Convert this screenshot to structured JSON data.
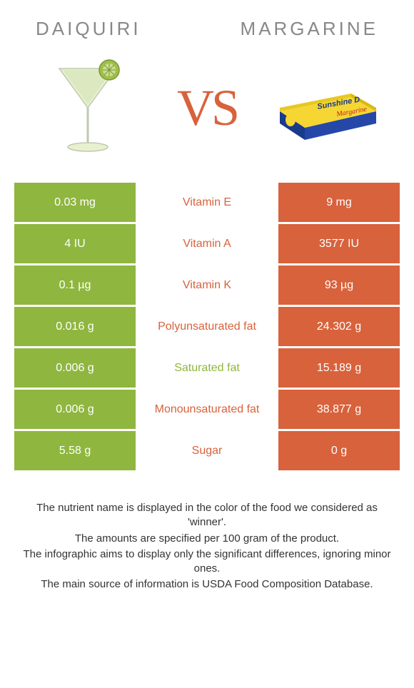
{
  "left_name": "Daiquiri",
  "right_name": "Margarine",
  "vs_text": "VS",
  "colors": {
    "left_box": "#8fb63f",
    "right_box": "#d8623c",
    "left_text": "#8fb63f",
    "right_text": "#d8623c",
    "header_text": "#888888",
    "body_text": "#333333",
    "bg": "#ffffff"
  },
  "rows": [
    {
      "label": "Vitamin E",
      "left": "0.03 mg",
      "right": "9 mg",
      "winner": "right"
    },
    {
      "label": "Vitamin A",
      "left": "4 IU",
      "right": "3577 IU",
      "winner": "right"
    },
    {
      "label": "Vitamin K",
      "left": "0.1 µg",
      "right": "93 µg",
      "winner": "right"
    },
    {
      "label": "Polyunsaturated fat",
      "left": "0.016 g",
      "right": "24.302 g",
      "winner": "right"
    },
    {
      "label": "Saturated fat",
      "left": "0.006 g",
      "right": "15.189 g",
      "winner": "left"
    },
    {
      "label": "Monounsaturated fat",
      "left": "0.006 g",
      "right": "38.877 g",
      "winner": "right"
    },
    {
      "label": "Sugar",
      "left": "5.58 g",
      "right": "0 g",
      "winner": "right"
    }
  ],
  "footer": [
    "The nutrient name is displayed in the color of the food we considered as 'winner'.",
    "The amounts are specified per 100 gram of the product.",
    "The infographic aims to display only the significant differences, ignoring minor ones.",
    "The main source of information is USDA Food Composition Database."
  ]
}
